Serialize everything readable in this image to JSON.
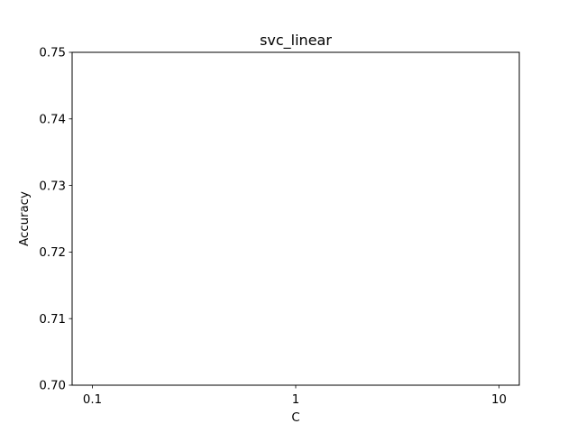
{
  "chart_data": {
    "type": "line",
    "title": "svc_linear",
    "xlabel": "C",
    "ylabel": "Accuracy",
    "x_scale": "log",
    "x_ticks": [
      0.1,
      1,
      10
    ],
    "x_tick_labels": [
      "0.1",
      "1",
      "10"
    ],
    "ylim": [
      0.7,
      0.75
    ],
    "y_ticks": [
      0.7,
      0.71,
      0.72,
      0.73,
      0.74,
      0.75
    ],
    "y_tick_labels": [
      "0.70",
      "0.71",
      "0.72",
      "0.73",
      "0.74",
      "0.75"
    ],
    "series": [],
    "grid": false,
    "legend": "none"
  }
}
